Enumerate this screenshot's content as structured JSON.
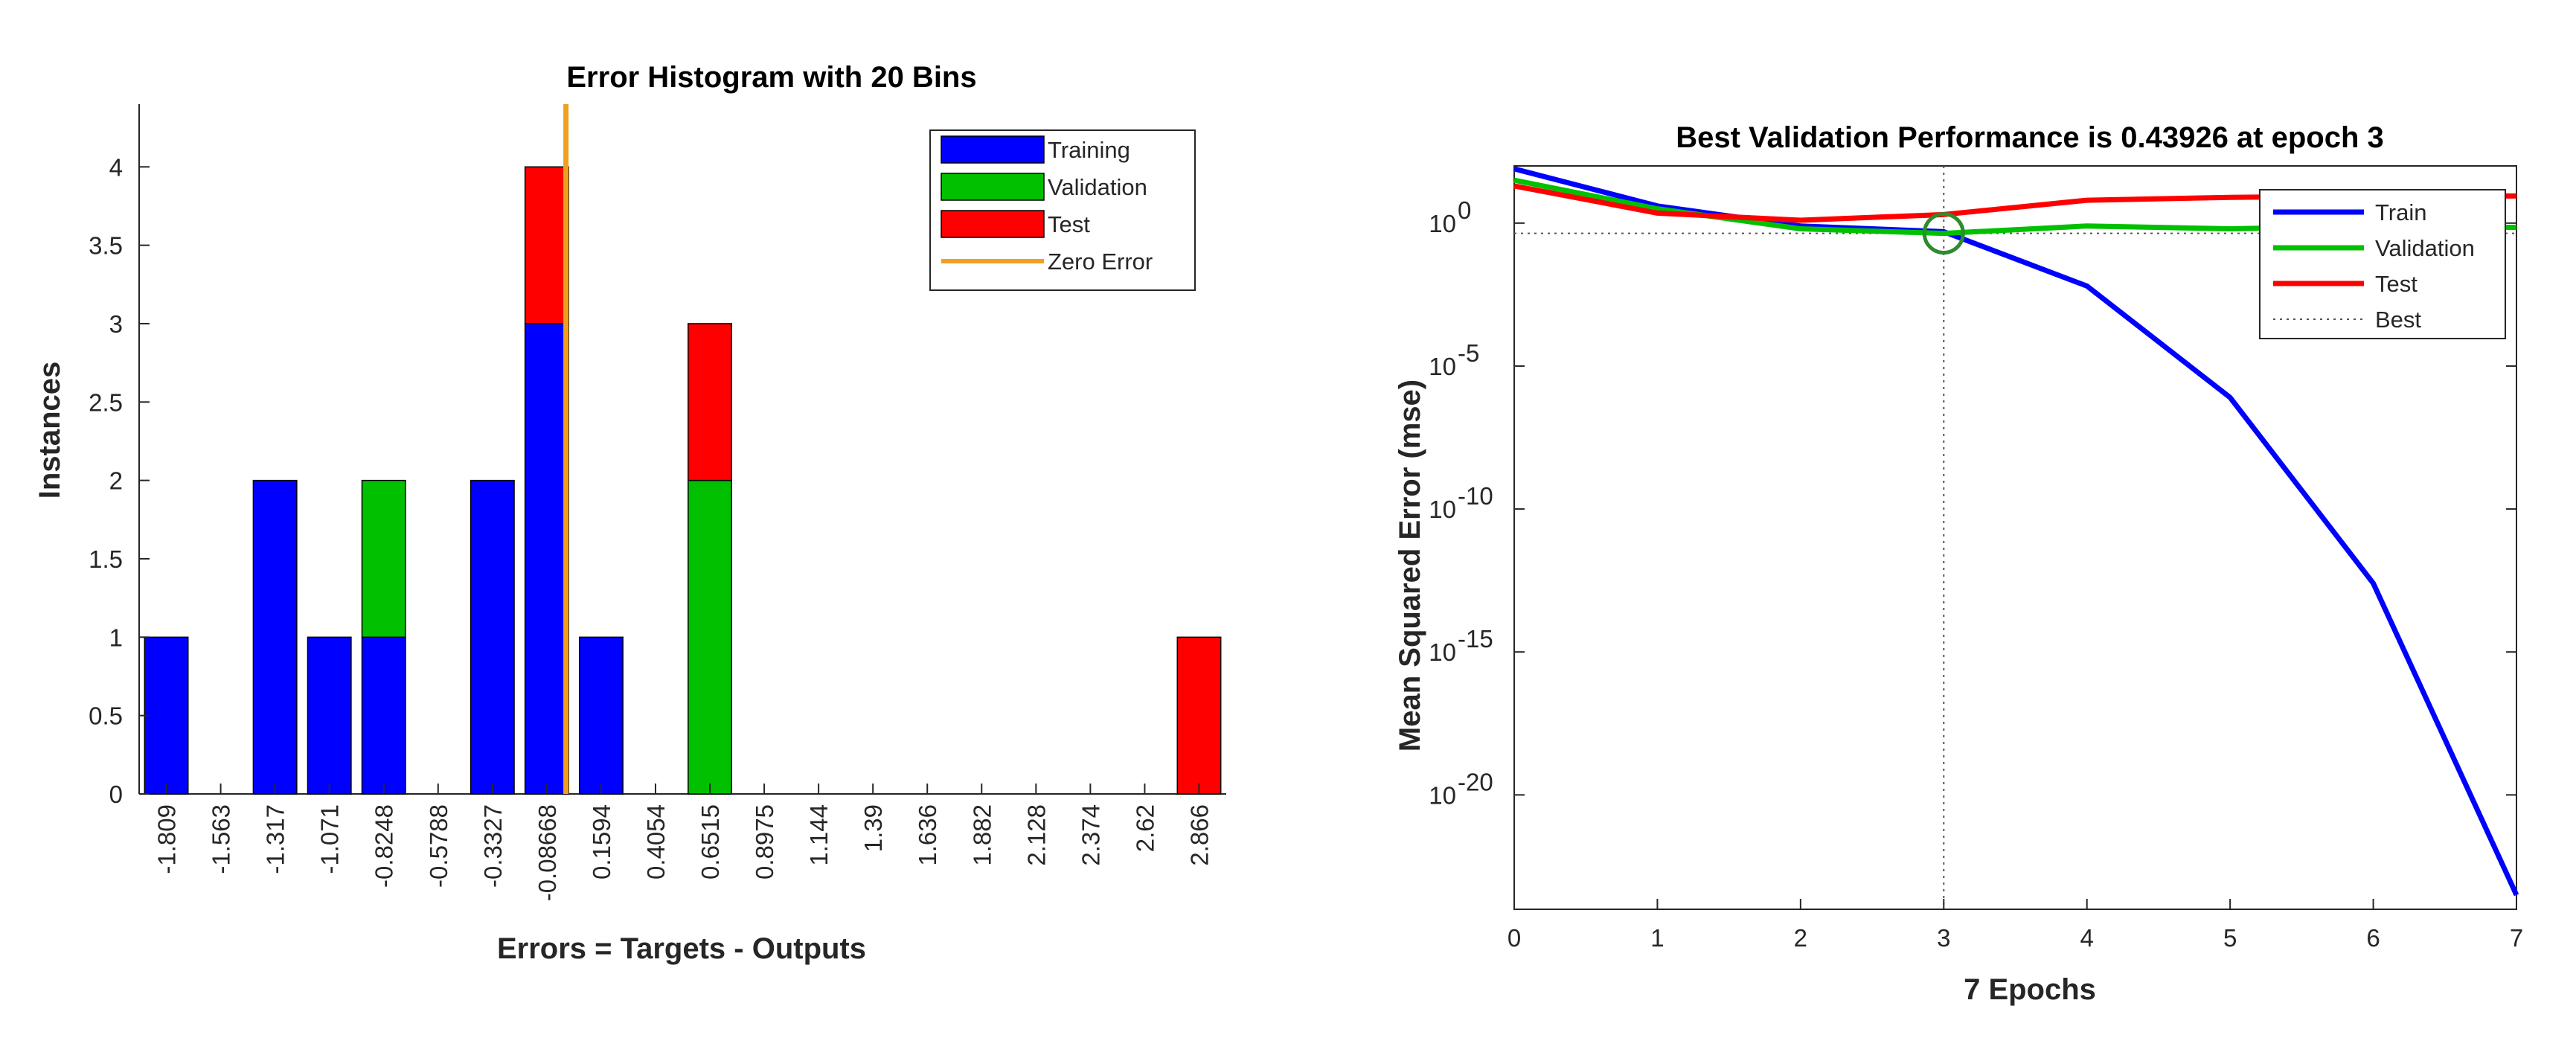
{
  "chart_data": [
    {
      "type": "bar",
      "title": "Error Histogram with 20 Bins",
      "xlabel": "Errors = Targets - Outputs",
      "ylabel": "Instances",
      "categories": [
        "-1.809",
        "-1.563",
        "-1.317",
        "-1.071",
        "-0.8248",
        "-0.5788",
        "-0.3327",
        "-0.08668",
        "0.1594",
        "0.4054",
        "0.6515",
        "0.8975",
        "1.144",
        "1.39",
        "1.636",
        "1.882",
        "2.128",
        "2.374",
        "2.62",
        "2.866"
      ],
      "series": [
        {
          "name": "Training",
          "color": "#0000ff",
          "values": [
            1,
            0,
            2,
            1,
            1,
            0,
            2,
            3,
            1,
            0,
            0,
            0,
            0,
            0,
            0,
            0,
            0,
            0,
            0,
            0
          ]
        },
        {
          "name": "Validation",
          "color": "#00c000",
          "values": [
            0,
            0,
            0,
            0,
            1,
            0,
            0,
            0,
            0,
            0,
            2,
            0,
            0,
            0,
            0,
            0,
            0,
            0,
            0,
            0
          ]
        },
        {
          "name": "Test",
          "color": "#ff0000",
          "values": [
            0,
            0,
            0,
            0,
            0,
            0,
            0,
            1,
            0,
            0,
            1,
            0,
            0,
            0,
            0,
            0,
            0,
            0,
            0,
            1
          ]
        }
      ],
      "zero_error": {
        "name": "Zero Error",
        "color": "#f0a020",
        "value": 0
      },
      "ylim": [
        0,
        4.4
      ],
      "yticks": [
        "0",
        "0.5",
        "1",
        "1.5",
        "2",
        "2.5",
        "3",
        "3.5",
        "4"
      ],
      "legend": "top-right",
      "grid": false
    },
    {
      "type": "line",
      "title": "Best Validation Performance is 0.43926 at epoch 3",
      "xlabel": "7 Epochs",
      "ylabel": "Mean Squared Error  (mse)",
      "x": [
        0,
        1,
        2,
        3,
        4,
        5,
        6,
        7
      ],
      "xticks": [
        "0",
        "1",
        "2",
        "3",
        "4",
        "5",
        "6",
        "7"
      ],
      "ylog": true,
      "ylim_exponent": [
        -24,
        2
      ],
      "yticks": [
        {
          "base": "10",
          "exp": "0",
          "value_exp": 0
        },
        {
          "base": "10",
          "exp": "-5",
          "value_exp": -5
        },
        {
          "base": "10",
          "exp": "-10",
          "value_exp": -10
        },
        {
          "base": "10",
          "exp": "-15",
          "value_exp": -15
        },
        {
          "base": "10",
          "exp": "-20",
          "value_exp": -20
        }
      ],
      "series": [
        {
          "name": "Train",
          "color": "#0000ff",
          "log10_values": [
            1.9,
            0.6,
            -0.1,
            -0.3,
            -2.2,
            -6.1,
            -12.6,
            -23.5
          ]
        },
        {
          "name": "Validation",
          "color": "#00c000",
          "log10_values": [
            1.5,
            0.5,
            -0.2,
            -0.36,
            -0.1,
            -0.2,
            -0.1,
            -0.15
          ]
        },
        {
          "name": "Test",
          "color": "#ff0000",
          "log10_values": [
            1.3,
            0.35,
            0.1,
            0.3,
            0.8,
            0.9,
            0.95,
            0.95
          ]
        }
      ],
      "best": {
        "name": "Best",
        "epoch": 3,
        "value": 0.43926,
        "log10_value": -0.357
      },
      "legend": "top-right",
      "grid": false
    }
  ]
}
